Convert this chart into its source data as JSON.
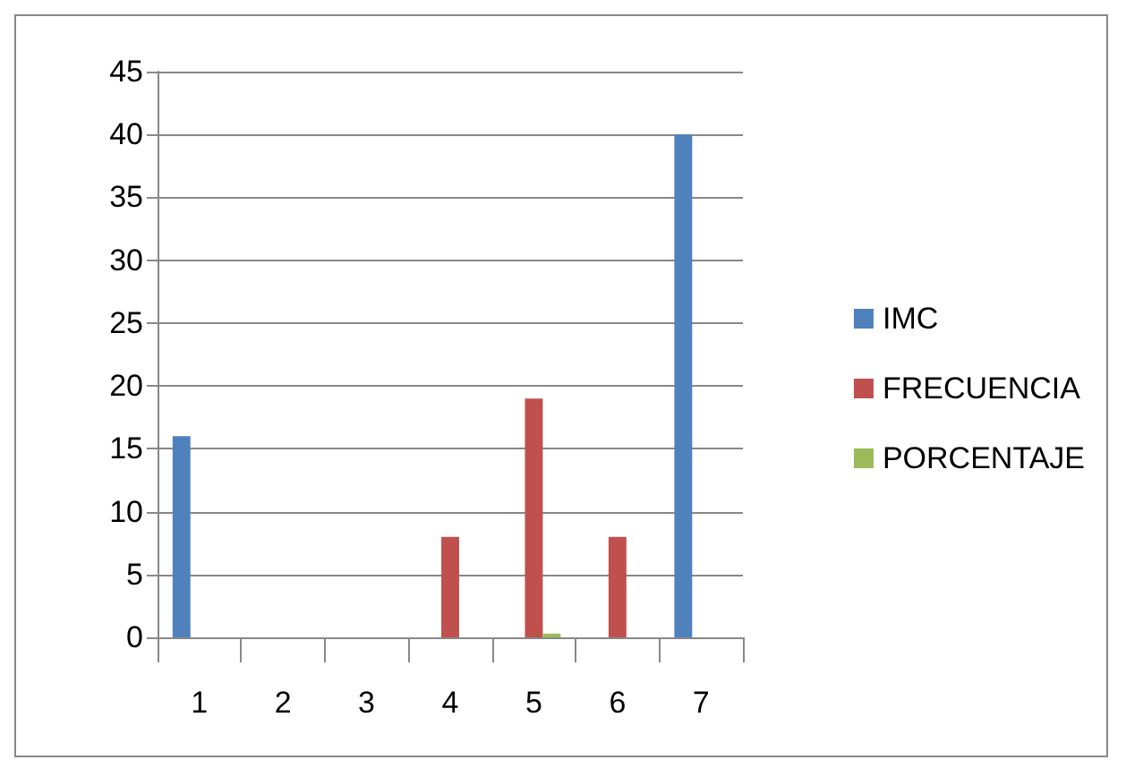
{
  "chart_data": {
    "type": "bar",
    "categories": [
      "1",
      "2",
      "3",
      "4",
      "5",
      "6",
      "7"
    ],
    "series": [
      {
        "name": "IMC",
        "color": "#4f81bd",
        "values": [
          16,
          null,
          null,
          null,
          null,
          null,
          40
        ]
      },
      {
        "name": "FRECUENCIA",
        "color": "#c0504d",
        "values": [
          null,
          null,
          null,
          8,
          19,
          8,
          null
        ]
      },
      {
        "name": "PORCENTAJE",
        "color": "#9bbb59",
        "values": [
          null,
          null,
          null,
          null,
          0.3,
          null,
          null
        ]
      }
    ],
    "ylim": [
      0,
      45
    ],
    "yticks": [
      0,
      5,
      10,
      15,
      20,
      25,
      30,
      35,
      40,
      45
    ],
    "grid": "y",
    "legend": "right"
  }
}
